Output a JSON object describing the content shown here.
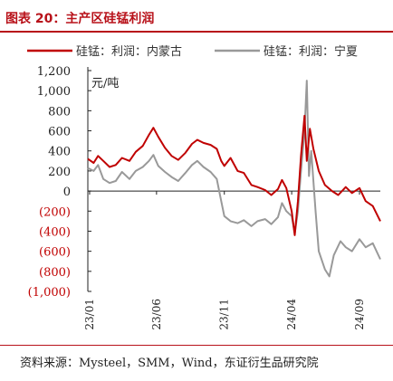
{
  "header": {
    "title": "图表 20：主产区硅锰利润"
  },
  "source": {
    "text": "资料来源：Mysteel，SMM，Wind，东证衍生品研究院"
  },
  "colors": {
    "accent": "#b8121a",
    "negative_tick": "#c00000",
    "series_1": "#c00000",
    "series_2": "#999999"
  },
  "chart_data": {
    "type": "line",
    "ylabel": "元/吨",
    "ylim": [
      -1000,
      1200
    ],
    "y_ticks": [
      1200,
      1000,
      800,
      600,
      400,
      200,
      0,
      -200,
      -400,
      -600,
      -800,
      -1000
    ],
    "y_tick_labels": [
      "1,200",
      "1,000",
      "800",
      "600",
      "400",
      "200",
      "0",
      "(200)",
      "(400)",
      "(600)",
      "(800)",
      "(1,000)"
    ],
    "x_ticks": [
      "23/01",
      "23/06",
      "23/11",
      "24/04",
      "24/09"
    ],
    "x_range": [
      "2022-12-28",
      "2024-10-18"
    ],
    "legend_position": "top",
    "grid": false,
    "series": [
      {
        "name": "硅锰：利润：内蒙古",
        "points": [
          [
            "2022-12-28",
            320
          ],
          [
            "2023-01-10",
            280
          ],
          [
            "2023-01-20",
            350
          ],
          [
            "2023-02-01",
            300
          ],
          [
            "2023-02-15",
            240
          ],
          [
            "2023-03-01",
            260
          ],
          [
            "2023-03-15",
            330
          ],
          [
            "2023-04-01",
            300
          ],
          [
            "2023-04-15",
            390
          ],
          [
            "2023-05-01",
            450
          ],
          [
            "2023-05-15",
            560
          ],
          [
            "2023-05-25",
            630
          ],
          [
            "2023-06-05",
            540
          ],
          [
            "2023-06-20",
            430
          ],
          [
            "2023-07-05",
            350
          ],
          [
            "2023-07-20",
            310
          ],
          [
            "2023-08-05",
            380
          ],
          [
            "2023-08-20",
            470
          ],
          [
            "2023-09-01",
            510
          ],
          [
            "2023-09-15",
            480
          ],
          [
            "2023-10-01",
            460
          ],
          [
            "2023-10-15",
            420
          ],
          [
            "2023-10-25",
            300
          ],
          [
            "2023-11-01",
            250
          ],
          [
            "2023-11-15",
            330
          ],
          [
            "2023-12-01",
            200
          ],
          [
            "2023-12-15",
            180
          ],
          [
            "2024-01-01",
            60
          ],
          [
            "2024-01-15",
            40
          ],
          [
            "2024-02-01",
            10
          ],
          [
            "2024-02-15",
            -40
          ],
          [
            "2024-03-01",
            20
          ],
          [
            "2024-03-10",
            110
          ],
          [
            "2024-03-20",
            30
          ],
          [
            "2024-04-01",
            -200
          ],
          [
            "2024-04-08",
            -440
          ],
          [
            "2024-04-15",
            -100
          ],
          [
            "2024-04-22",
            350
          ],
          [
            "2024-04-30",
            750
          ],
          [
            "2024-05-05",
            300
          ],
          [
            "2024-05-12",
            620
          ],
          [
            "2024-05-20",
            420
          ],
          [
            "2024-06-01",
            200
          ],
          [
            "2024-06-15",
            60
          ],
          [
            "2024-07-01",
            0
          ],
          [
            "2024-07-15",
            -40
          ],
          [
            "2024-08-01",
            40
          ],
          [
            "2024-08-15",
            -20
          ],
          [
            "2024-09-01",
            30
          ],
          [
            "2024-09-15",
            -100
          ],
          [
            "2024-10-01",
            -150
          ],
          [
            "2024-10-18",
            -300
          ]
        ]
      },
      {
        "name": "硅锰：利润：宁夏",
        "points": [
          [
            "2022-12-28",
            230
          ],
          [
            "2023-01-10",
            200
          ],
          [
            "2023-01-20",
            260
          ],
          [
            "2023-02-01",
            120
          ],
          [
            "2023-02-15",
            80
          ],
          [
            "2023-03-01",
            100
          ],
          [
            "2023-03-15",
            190
          ],
          [
            "2023-04-01",
            120
          ],
          [
            "2023-04-15",
            200
          ],
          [
            "2023-05-01",
            240
          ],
          [
            "2023-05-15",
            300
          ],
          [
            "2023-05-25",
            360
          ],
          [
            "2023-06-05",
            250
          ],
          [
            "2023-06-20",
            190
          ],
          [
            "2023-07-05",
            140
          ],
          [
            "2023-07-20",
            100
          ],
          [
            "2023-08-05",
            180
          ],
          [
            "2023-08-20",
            260
          ],
          [
            "2023-09-01",
            300
          ],
          [
            "2023-09-15",
            240
          ],
          [
            "2023-10-01",
            190
          ],
          [
            "2023-10-15",
            120
          ],
          [
            "2023-10-25",
            -100
          ],
          [
            "2023-11-01",
            -250
          ],
          [
            "2023-11-15",
            -300
          ],
          [
            "2023-12-01",
            -320
          ],
          [
            "2023-12-15",
            -290
          ],
          [
            "2024-01-01",
            -350
          ],
          [
            "2024-01-15",
            -300
          ],
          [
            "2024-02-01",
            -280
          ],
          [
            "2024-02-15",
            -330
          ],
          [
            "2024-03-01",
            -260
          ],
          [
            "2024-03-10",
            -120
          ],
          [
            "2024-03-20",
            -200
          ],
          [
            "2024-04-01",
            -250
          ],
          [
            "2024-04-08",
            -420
          ],
          [
            "2024-04-15",
            -200
          ],
          [
            "2024-04-22",
            200
          ],
          [
            "2024-04-30",
            600
          ],
          [
            "2024-05-05",
            1100
          ],
          [
            "2024-05-10",
            150
          ],
          [
            "2024-05-15",
            400
          ],
          [
            "2024-05-25",
            -200
          ],
          [
            "2024-06-01",
            -600
          ],
          [
            "2024-06-15",
            -780
          ],
          [
            "2024-06-25",
            -850
          ],
          [
            "2024-07-05",
            -640
          ],
          [
            "2024-07-20",
            -500
          ],
          [
            "2024-08-01",
            -560
          ],
          [
            "2024-08-15",
            -600
          ],
          [
            "2024-09-01",
            -480
          ],
          [
            "2024-09-15",
            -560
          ],
          [
            "2024-10-01",
            -520
          ],
          [
            "2024-10-18",
            -680
          ]
        ]
      }
    ]
  }
}
